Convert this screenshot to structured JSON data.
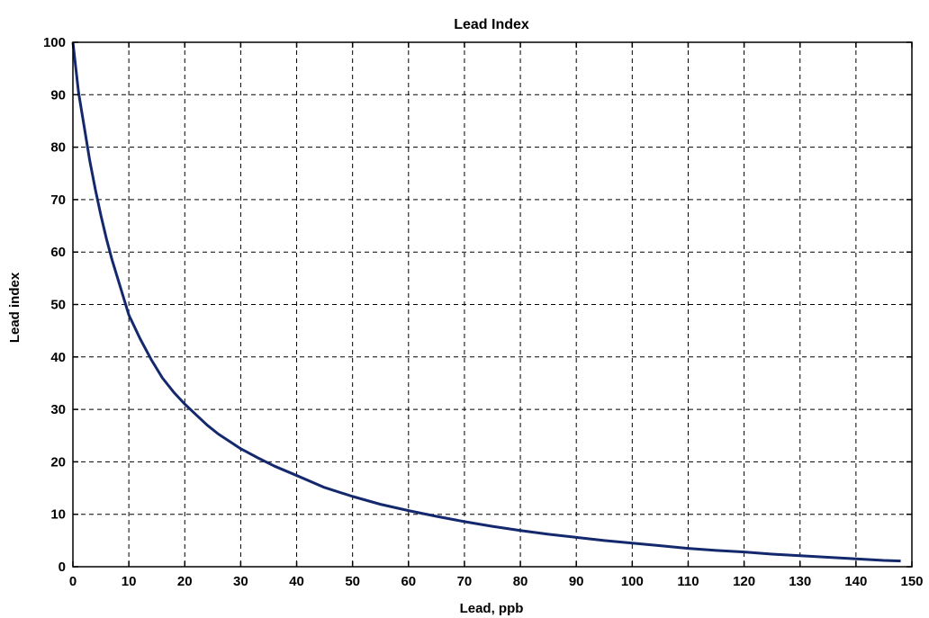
{
  "chart_data": {
    "type": "line",
    "title": "Lead Index",
    "xlabel": "Lead, ppb",
    "ylabel": "Lead index",
    "xlim": [
      0,
      150
    ],
    "ylim": [
      0,
      100
    ],
    "xticks": [
      "0",
      "10",
      "20",
      "30",
      "40",
      "50",
      "60",
      "70",
      "80",
      "90",
      "100",
      "110",
      "120",
      "130",
      "140",
      "150"
    ],
    "yticks": [
      "0",
      "10",
      "20",
      "30",
      "40",
      "50",
      "60",
      "70",
      "80",
      "90",
      "100"
    ],
    "grid": true,
    "series": [
      {
        "color": "#14286e",
        "x": [
          0,
          1,
          2,
          3,
          4,
          5,
          6,
          7,
          8,
          9,
          10,
          12,
          14,
          16,
          18,
          20,
          22,
          24,
          26,
          28,
          30,
          33,
          36,
          40,
          45,
          50,
          55,
          60,
          65,
          70,
          75,
          80,
          85,
          90,
          95,
          100,
          105,
          110,
          115,
          120,
          125,
          130,
          135,
          140,
          145,
          148
        ],
        "y": [
          100,
          90.5,
          84,
          77.5,
          72,
          67,
          62.5,
          58.5,
          55,
          51.5,
          48,
          43.5,
          39.5,
          36,
          33.3,
          31,
          29,
          27,
          25.3,
          23.9,
          22.5,
          20.8,
          19.2,
          17.4,
          15.1,
          13.4,
          11.9,
          10.7,
          9.6,
          8.6,
          7.7,
          6.9,
          6.2,
          5.6,
          5,
          4.5,
          4,
          3.5,
          3.1,
          2.8,
          2.4,
          2.1,
          1.8,
          1.5,
          1.2,
          1.1
        ]
      }
    ]
  }
}
